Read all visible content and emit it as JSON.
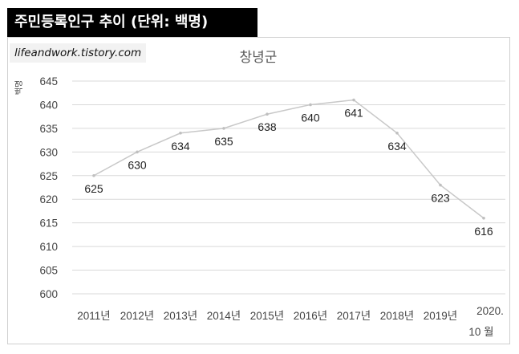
{
  "header": {
    "title": "주민등록인구 추이 (단위: 백명)"
  },
  "watermark": {
    "text": "lifeandwork.tistory.com"
  },
  "chart_data": {
    "type": "line",
    "title": "창녕군",
    "ylabel": "백명",
    "xlabel": "",
    "categories": [
      "2011년",
      "2012년",
      "2013년",
      "2014년",
      "2015년",
      "2016년",
      "2017년",
      "2018년",
      "2019년",
      "2020. 10 월"
    ],
    "values": [
      625,
      630,
      634,
      635,
      638,
      640,
      641,
      634,
      623,
      616
    ],
    "data_labels": [
      "625",
      "630",
      "634",
      "635",
      "638",
      "640",
      "641",
      "634",
      "623",
      "616"
    ],
    "ylim": [
      600,
      645
    ],
    "yticks": [
      600,
      605,
      610,
      615,
      620,
      625,
      630,
      635,
      640,
      645
    ],
    "grid": true,
    "legend": "none",
    "colors": {
      "line": "#c8c8c8",
      "marker": "#bfbfbf",
      "grid": "#d9d9d9"
    }
  }
}
